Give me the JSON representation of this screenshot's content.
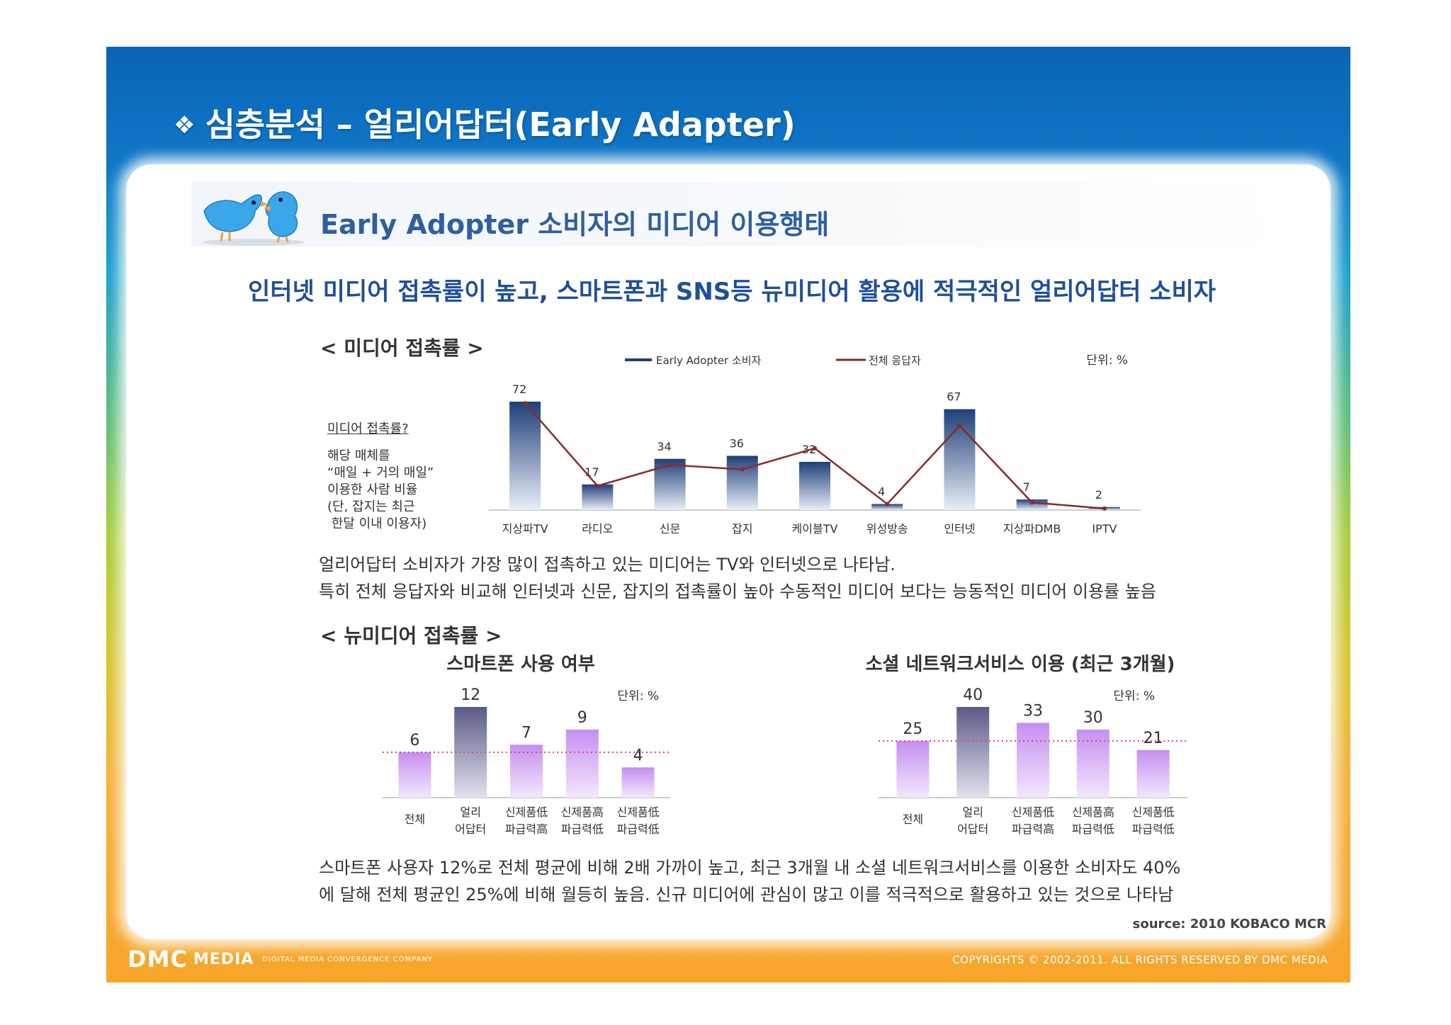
{
  "slide_title": "심층분석 – 얼리어답터(Early Adapter)",
  "section_heading": "Early Adopter 소비자의 미디어 이용행태",
  "subheading": "인터넷 미디어 접촉률이 높고, 스마트폰과 SNS등 뉴미디어 활용에 적극적인 얼리어답터 소비자",
  "media_chart_title": "< 미디어 접촉률 >",
  "note": {
    "title": "미디어 접촉률?",
    "lines": [
      "해당 매체를",
      "“매일 + 거의 매일”",
      "이용한 사람 비율",
      "(단, 잡지는 최근",
      " 한달 이내 이용자)"
    ]
  },
  "media_summary": [
    "얼리어답터 소비자가 가장 많이 접촉하고 있는 미디어는 TV와 인터넷으로 나타남.",
    "특히 전체 응답자와 비교해 인터넷과 신문, 잡지의 접촉률이 높아 수동적인 미디어 보다는 능동적인 미디어 이용률 높음"
  ],
  "newmedia_title": "< 뉴미디어 접촉률 >",
  "newmedia_summary": [
    "스마트폰 사용자 12%로 전체 평균에 비해 2배 가까이 높고, 최근 3개월 내 소셜 네트워크서비스를 이용한 소비자도 40%",
    "에 달해 전체 평균인 25%에 비해 월등히 높음. 신규 미디어에 관심이 많고 이를 적극적으로 활용하고 있는 것으로 나타남"
  ],
  "source": "source: 2010 KOBACO MCR",
  "footer": {
    "logo_dmc": "DMC",
    "logo_media": "MEDIA",
    "logo_tagline": "DIGITAL MEDIA CONVERGENCE COMPANY",
    "copyright": "COPYRIGHTS © 2002-2011. ALL RIGHTS RESERVED BY DMC MEDIA"
  },
  "colors": {
    "bar_dark": "#1f3f78",
    "line": "#8b2a2a",
    "purple": "#c58ef0",
    "purple_dark": "#5a5a88",
    "dotted": "#e0457a"
  },
  "chart_data": [
    {
      "id": "media",
      "type": "bar",
      "unit_label": "단위: %",
      "categories": [
        "지상파TV",
        "라디오",
        "신문",
        "잡지",
        "케이블TV",
        "위성방송",
        "인터넷",
        "지상파DMB",
        "IPTV"
      ],
      "series": [
        {
          "name": "Early Adopter 소비자",
          "type": "bar",
          "values": [
            72,
            17,
            34,
            36,
            32,
            4,
            67,
            7,
            2
          ]
        },
        {
          "name": "전체 응답자",
          "type": "line",
          "values": [
            71,
            16,
            30,
            27,
            41,
            4,
            56,
            5,
            1
          ]
        }
      ],
      "ylim": [
        0,
        80
      ],
      "legend_position": "top"
    },
    {
      "id": "smartphone",
      "type": "bar",
      "title": "스마트폰 사용 여부",
      "unit_label": "단위: %",
      "categories": [
        [
          "전체"
        ],
        [
          "얼리",
          "어답터"
        ],
        [
          "신제품低",
          "파급력高"
        ],
        [
          "신제품高",
          "파급력低"
        ],
        [
          "신제품低",
          "파급력低"
        ]
      ],
      "values": [
        6,
        12,
        7,
        9,
        4
      ],
      "reference_value": 6,
      "highlight_index": 1,
      "ylim": [
        0,
        12
      ]
    },
    {
      "id": "sns",
      "type": "bar",
      "title": "소셜 네트워크서비스 이용 (최근 3개월)",
      "unit_label": "단위: %",
      "categories": [
        [
          "전체"
        ],
        [
          "얼리",
          "어답터"
        ],
        [
          "신제품低",
          "파급력高"
        ],
        [
          "신제품高",
          "파급력低"
        ],
        [
          "신제품低",
          "파급력低"
        ]
      ],
      "values": [
        25,
        40,
        33,
        30,
        21
      ],
      "reference_value": 25,
      "highlight_index": 1,
      "ylim": [
        0,
        40
      ]
    }
  ]
}
